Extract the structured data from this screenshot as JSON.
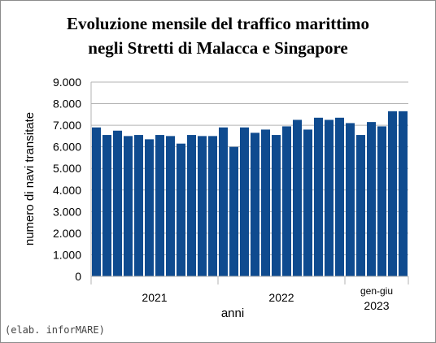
{
  "chart_data": {
    "type": "bar",
    "title_line1": "Evoluzione mensile del traffico marittimo",
    "title_line2": "negli Stretti di Malacca e Singapore",
    "ylabel": "numero di navi transitate",
    "xlabel": "anni",
    "ylim": [
      0,
      9000
    ],
    "yticks": [
      "0",
      "1.000",
      "2.000",
      "3.000",
      "4.000",
      "5.000",
      "6.000",
      "7.000",
      "8.000",
      "9.000"
    ],
    "ytick_values": [
      0,
      1000,
      2000,
      3000,
      4000,
      5000,
      6000,
      7000,
      8000,
      9000
    ],
    "groups": [
      {
        "label": "2021",
        "months": 12
      },
      {
        "label": "2022",
        "months": 12
      },
      {
        "label_line1": "gen-giu",
        "label_line2": "2023",
        "months": 6
      }
    ],
    "values": [
      6900,
      6550,
      6750,
      6500,
      6550,
      6350,
      6550,
      6500,
      6150,
      6550,
      6500,
      6500,
      6900,
      6000,
      6900,
      6650,
      6800,
      6550,
      6950,
      7250,
      6800,
      7350,
      7250,
      7350,
      7100,
      6550,
      7150,
      6950,
      7650,
      7650
    ],
    "bar_color": "#0f4b8f",
    "grid": true
  },
  "credit": "(elab. inforMARE)"
}
